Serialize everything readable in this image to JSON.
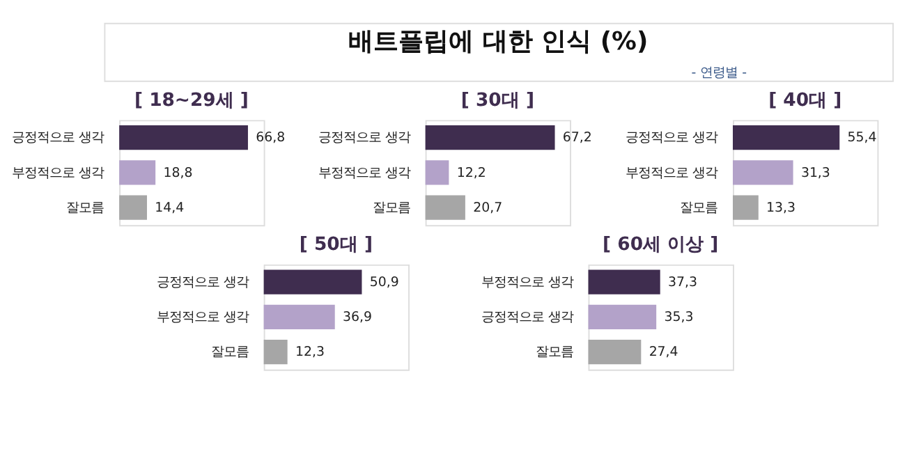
{
  "chart_data": [
    {
      "type": "other",
      "title": "배트플립에 대한 인식 (%)",
      "subtitle": "- 연령별 -"
    },
    {
      "type": "bar",
      "orientation": "horizontal",
      "title": "[ 18~29세 ]",
      "categories": [
        "긍정적으로 생각",
        "부정적으로 생각",
        "잘모름"
      ],
      "values": [
        66.8,
        18.8,
        14.4
      ],
      "value_labels": [
        "66,8",
        "18,8",
        "14,4"
      ],
      "colors": [
        "#3f2d4f",
        "#b3a2c9",
        "#a6a6a6"
      ],
      "xlim": [
        0,
        75
      ],
      "tick_labels": "y",
      "grid": false,
      "legend": false
    },
    {
      "type": "bar",
      "orientation": "horizontal",
      "title": "[ 30대 ]",
      "categories": [
        "긍정적으로 생각",
        "부정적으로 생각",
        "잘모름"
      ],
      "values": [
        67.2,
        12.2,
        20.7
      ],
      "value_labels": [
        "67,2",
        "12,2",
        "20,7"
      ],
      "colors": [
        "#3f2d4f",
        "#b3a2c9",
        "#a6a6a6"
      ],
      "xlim": [
        0,
        75
      ],
      "tick_labels": "y",
      "grid": false,
      "legend": false
    },
    {
      "type": "bar",
      "orientation": "horizontal",
      "title": "[ 40대 ]",
      "categories": [
        "긍정적으로 생각",
        "부정적으로 생각",
        "잘모름"
      ],
      "values": [
        55.4,
        31.3,
        13.3
      ],
      "value_labels": [
        "55,4",
        "31,3",
        "13,3"
      ],
      "colors": [
        "#3f2d4f",
        "#b3a2c9",
        "#a6a6a6"
      ],
      "xlim": [
        0,
        75
      ],
      "tick_labels": "y",
      "grid": false,
      "legend": false
    },
    {
      "type": "bar",
      "orientation": "horizontal",
      "title": "[ 50대 ]",
      "categories": [
        "긍정적으로 생각",
        "부정적으로 생각",
        "잘모름"
      ],
      "values": [
        50.9,
        36.9,
        12.3
      ],
      "value_labels": [
        "50,9",
        "36,9",
        "12,3"
      ],
      "colors": [
        "#3f2d4f",
        "#b3a2c9",
        "#a6a6a6"
      ],
      "xlim": [
        0,
        75
      ],
      "tick_labels": "y",
      "grid": false,
      "legend": false
    },
    {
      "type": "bar",
      "orientation": "horizontal",
      "title": "[ 60세 이상 ]",
      "categories": [
        "부정적으로 생각",
        "긍정적으로 생각",
        "잘모름"
      ],
      "values": [
        37.3,
        35.3,
        27.4
      ],
      "value_labels": [
        "37,3",
        "35,3",
        "27,4"
      ],
      "colors": [
        "#3f2d4f",
        "#b3a2c9",
        "#a6a6a6"
      ],
      "xlim": [
        0,
        75
      ],
      "tick_labels": "y",
      "grid": false,
      "legend": false
    }
  ]
}
